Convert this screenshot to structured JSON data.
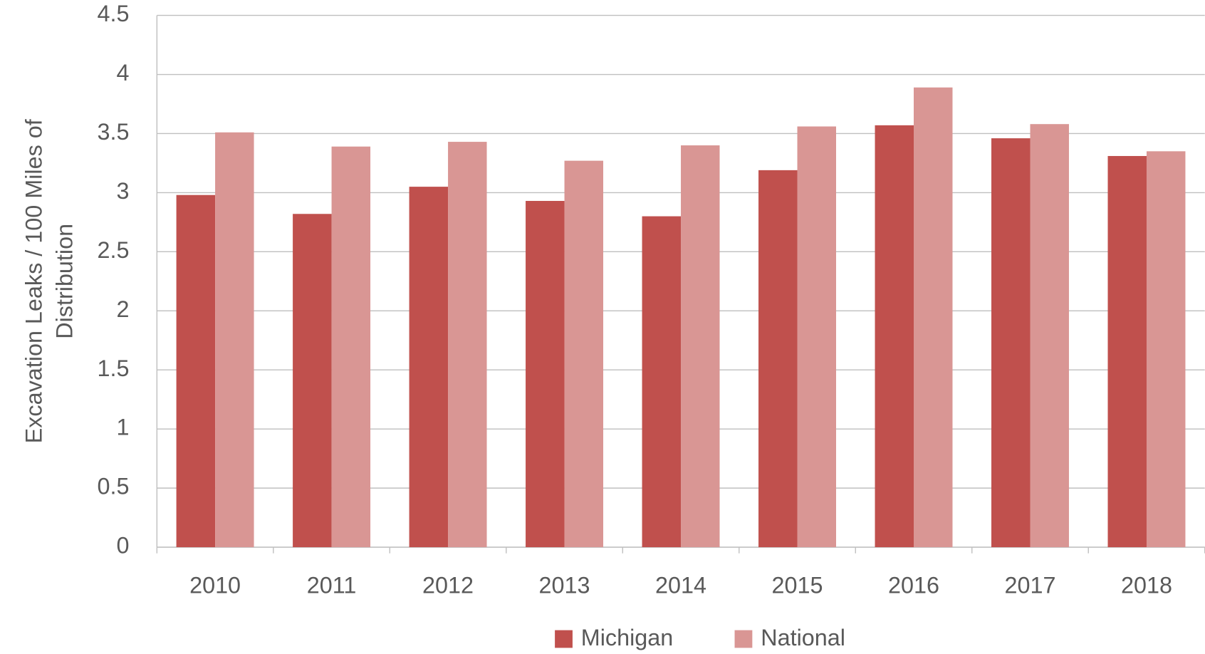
{
  "chart_data": {
    "type": "bar",
    "ylabel": [
      "Excavation Leaks / 100 Miles of",
      "Distribution"
    ],
    "categories": [
      "2010",
      "2011",
      "2012",
      "2013",
      "2014",
      "2015",
      "2016",
      "2017",
      "2018"
    ],
    "series": [
      {
        "name": "Michigan",
        "color": "#c0504d",
        "values": [
          2.98,
          2.82,
          3.05,
          2.93,
          2.8,
          3.19,
          3.57,
          3.46,
          3.31
        ]
      },
      {
        "name": "National",
        "color": "#d99694",
        "values": [
          3.51,
          3.39,
          3.43,
          3.27,
          3.4,
          3.56,
          3.89,
          3.58,
          3.35
        ]
      }
    ],
    "ylim": [
      0,
      4.5
    ],
    "yticks": [
      0,
      0.5,
      1,
      1.5,
      2,
      2.5,
      3,
      3.5,
      4,
      4.5
    ],
    "grid": true,
    "legend": "bottom"
  }
}
